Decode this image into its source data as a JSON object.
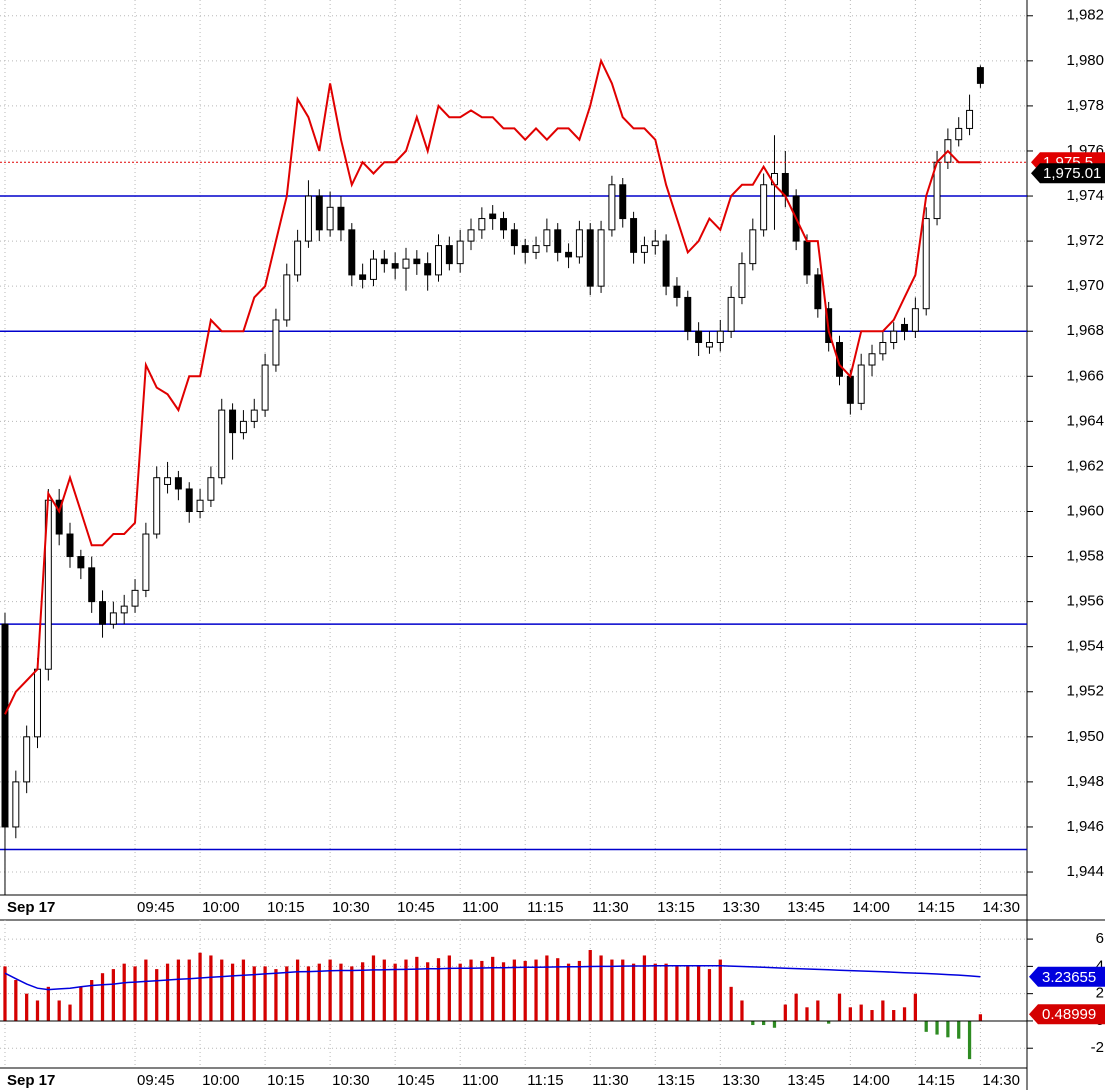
{
  "chart_data": [
    {
      "type": "candlestick",
      "xlim": [
        -0.46,
        94.3
      ],
      "xticks": [
        {
          "value": 0,
          "label": "Sep 17"
        },
        {
          "value": 12,
          "label": "09:45"
        },
        {
          "value": 18,
          "label": "10:00"
        },
        {
          "value": 24,
          "label": "10:15"
        },
        {
          "value": 30,
          "label": "10:30"
        },
        {
          "value": 36,
          "label": "10:45"
        },
        {
          "value": 42,
          "label": "11:00"
        },
        {
          "value": 48,
          "label": "11:15"
        },
        {
          "value": 54,
          "label": "11:30"
        },
        {
          "value": 60,
          "label": "13:15"
        },
        {
          "value": 66,
          "label": "13:30"
        },
        {
          "value": 72,
          "label": "13:45"
        },
        {
          "value": 78,
          "label": "14:00"
        },
        {
          "value": 84,
          "label": "14:15"
        },
        {
          "value": 90,
          "label": "14:30"
        }
      ],
      "ylim": [
        1942.98,
        1982.7
      ],
      "yticks": [
        {
          "value": 1944,
          "label": "1,944"
        },
        {
          "value": 1946,
          "label": "1,946"
        },
        {
          "value": 1948,
          "label": "1,948"
        },
        {
          "value": 1950,
          "label": "1,950"
        },
        {
          "value": 1952,
          "label": "1,952"
        },
        {
          "value": 1954,
          "label": "1,954"
        },
        {
          "value": 1956,
          "label": "1,956"
        },
        {
          "value": 1958,
          "label": "1,958"
        },
        {
          "value": 1960,
          "label": "1,960"
        },
        {
          "value": 1962,
          "label": "1,962"
        },
        {
          "value": 1964,
          "label": "1,964"
        },
        {
          "value": 1966,
          "label": "1,966"
        },
        {
          "value": 1968,
          "label": "1,968"
        },
        {
          "value": 1970,
          "label": "1,970"
        },
        {
          "value": 1972,
          "label": "1,972"
        },
        {
          "value": 1974,
          "label": "1,974"
        },
        {
          "value": 1976,
          "label": "1,976"
        },
        {
          "value": 1978,
          "label": "1,978"
        },
        {
          "value": 1980,
          "label": "1,980"
        },
        {
          "value": 1982,
          "label": "1,982"
        }
      ],
      "grid": true,
      "up_color": "#ffffff",
      "down_color": "#000000",
      "ohlc": [
        [
          1955,
          1955.5,
          1943,
          1946
        ],
        [
          1946,
          1948.5,
          1945.5,
          1948
        ],
        [
          1948,
          1950.5,
          1947.5,
          1950
        ],
        [
          1950,
          1953.5,
          1949.5,
          1953
        ],
        [
          1953,
          1961,
          1952.5,
          1960.5
        ],
        [
          1960.5,
          1961,
          1958.5,
          1959
        ],
        [
          1959,
          1959.5,
          1957.5,
          1958
        ],
        [
          1958,
          1958.3,
          1957,
          1957.5
        ],
        [
          1957.5,
          1958,
          1955.5,
          1956
        ],
        [
          1956,
          1956.5,
          1954.4,
          1955
        ],
        [
          1955,
          1956,
          1954.8,
          1955.5
        ],
        [
          1955.5,
          1956.3,
          1955,
          1955.8
        ],
        [
          1955.8,
          1957,
          1955.5,
          1956.5
        ],
        [
          1956.5,
          1959.5,
          1956.2,
          1959
        ],
        [
          1959,
          1962,
          1958.8,
          1961.5
        ],
        [
          1961.2,
          1962.2,
          1960.8,
          1961.5
        ],
        [
          1961.5,
          1961.8,
          1960.5,
          1961
        ],
        [
          1961,
          1961.3,
          1959.5,
          1960
        ],
        [
          1960,
          1961,
          1959.7,
          1960.5
        ],
        [
          1960.5,
          1962,
          1960.2,
          1961.5
        ],
        [
          1961.5,
          1965,
          1961.2,
          1964.5
        ],
        [
          1964.5,
          1964.8,
          1962.3,
          1963.5
        ],
        [
          1963.5,
          1964.5,
          1963.2,
          1964
        ],
        [
          1964,
          1965,
          1963.7,
          1964.5
        ],
        [
          1964.5,
          1967,
          1964.2,
          1966.5
        ],
        [
          1966.5,
          1969,
          1966.2,
          1968.5
        ],
        [
          1968.5,
          1971,
          1968.2,
          1970.5
        ],
        [
          1970.5,
          1972.5,
          1970.2,
          1972
        ],
        [
          1972,
          1974.7,
          1971.7,
          1974
        ],
        [
          1974,
          1974.3,
          1972,
          1972.5
        ],
        [
          1972.5,
          1974.2,
          1972.2,
          1973.5
        ],
        [
          1973.5,
          1974,
          1972,
          1972.5
        ],
        [
          1972.5,
          1972.8,
          1970,
          1970.5
        ],
        [
          1970.5,
          1971,
          1969.9,
          1970.3
        ],
        [
          1970.3,
          1971.6,
          1970,
          1971.2
        ],
        [
          1971.2,
          1971.6,
          1970.6,
          1971
        ],
        [
          1971,
          1971.5,
          1970.3,
          1970.8
        ],
        [
          1970.8,
          1971.7,
          1969.8,
          1971.2
        ],
        [
          1971.2,
          1971.6,
          1970.5,
          1971
        ],
        [
          1971,
          1971.5,
          1969.8,
          1970.5
        ],
        [
          1970.5,
          1972.3,
          1970.2,
          1971.8
        ],
        [
          1971.8,
          1972.2,
          1970.7,
          1971
        ],
        [
          1971,
          1972.5,
          1970.6,
          1972
        ],
        [
          1972,
          1973,
          1971.6,
          1972.5
        ],
        [
          1972.5,
          1973.5,
          1972.1,
          1973
        ],
        [
          1973.2,
          1973.6,
          1972.5,
          1973
        ],
        [
          1973,
          1973.3,
          1972.1,
          1972.5
        ],
        [
          1972.5,
          1972.8,
          1971.4,
          1971.8
        ],
        [
          1971.8,
          1972.1,
          1971,
          1971.5
        ],
        [
          1971.5,
          1972.2,
          1971.2,
          1971.8
        ],
        [
          1971.8,
          1973,
          1971.5,
          1972.5
        ],
        [
          1972.5,
          1972.8,
          1971.1,
          1971.5
        ],
        [
          1971.5,
          1971.9,
          1970.8,
          1971.3
        ],
        [
          1971.3,
          1972.9,
          1971,
          1972.5
        ],
        [
          1972.5,
          1972.8,
          1969.6,
          1970
        ],
        [
          1970,
          1972.9,
          1969.7,
          1972.5
        ],
        [
          1972.5,
          1974.9,
          1972.2,
          1974.5
        ],
        [
          1974.5,
          1974.8,
          1972.6,
          1973
        ],
        [
          1973,
          1973.3,
          1971,
          1971.5
        ],
        [
          1971.5,
          1972.2,
          1971,
          1971.8
        ],
        [
          1971.8,
          1972.5,
          1971.4,
          1972
        ],
        [
          1972,
          1972.3,
          1969.6,
          1970
        ],
        [
          1970,
          1970.4,
          1969.1,
          1969.5
        ],
        [
          1969.5,
          1969.8,
          1967.6,
          1968
        ],
        [
          1968,
          1968.4,
          1966.9,
          1967.5
        ],
        [
          1967.3,
          1968,
          1967,
          1967.5
        ],
        [
          1967.5,
          1968.5,
          1967.1,
          1968
        ],
        [
          1968,
          1970,
          1967.7,
          1969.5
        ],
        [
          1969.5,
          1971.5,
          1969.2,
          1971
        ],
        [
          1971,
          1973,
          1970.7,
          1972.5
        ],
        [
          1972.5,
          1975,
          1972.2,
          1974.5
        ],
        [
          1974.5,
          1976.7,
          1972.5,
          1975
        ],
        [
          1975,
          1976,
          1973.5,
          1974
        ],
        [
          1974,
          1974.3,
          1971.6,
          1972
        ],
        [
          1972,
          1972.3,
          1970.1,
          1970.5
        ],
        [
          1970.5,
          1970.8,
          1968.6,
          1969
        ],
        [
          1969,
          1969.3,
          1967.1,
          1967.5
        ],
        [
          1967.5,
          1967.8,
          1965.6,
          1966
        ],
        [
          1966,
          1966.3,
          1964.3,
          1964.8
        ],
        [
          1964.8,
          1967,
          1964.5,
          1966.5
        ],
        [
          1966.5,
          1967.4,
          1966,
          1967
        ],
        [
          1967,
          1968,
          1966.7,
          1967.5
        ],
        [
          1967.5,
          1968.4,
          1967.2,
          1968
        ],
        [
          1968.3,
          1968.6,
          1967.6,
          1968
        ],
        [
          1968,
          1969.5,
          1967.7,
          1969
        ],
        [
          1969,
          1973.5,
          1968.7,
          1973
        ],
        [
          1973,
          1976,
          1972.7,
          1975.5
        ],
        [
          1975.5,
          1977,
          1975.2,
          1976.5
        ],
        [
          1976.5,
          1977.5,
          1976.2,
          1977
        ],
        [
          1977,
          1978.5,
          1976.7,
          1977.8
        ],
        [
          1979.7,
          1979.8,
          1978.8,
          1979
        ]
      ],
      "line": {
        "color": "#e00000",
        "values": [
          1951,
          1952,
          1952.5,
          1953,
          1960.8,
          1960,
          1961.5,
          1960,
          1958.5,
          1958.5,
          1959,
          1959,
          1959.5,
          1966.5,
          1965.5,
          1965.2,
          1964.5,
          1966,
          1966,
          1968.5,
          1968,
          1968,
          1968,
          1969.5,
          1970,
          1972,
          1974,
          1978.3,
          1977.5,
          1976,
          1979,
          1976.5,
          1974.5,
          1975.5,
          1975,
          1975.5,
          1975.5,
          1976,
          1977.5,
          1976,
          1978,
          1977.5,
          1977.5,
          1977.8,
          1977.5,
          1977.5,
          1977,
          1977,
          1976.5,
          1977,
          1976.5,
          1977,
          1977,
          1976.5,
          1978,
          1980,
          1979,
          1977.5,
          1977,
          1977,
          1976.5,
          1974.5,
          1973,
          1971.5,
          1972,
          1973,
          1972.5,
          1974,
          1974.5,
          1974.5,
          1975.3,
          1974.5,
          1974,
          1973,
          1972,
          1972,
          1968,
          1966.5,
          1966,
          1968,
          1968,
          1968,
          1968.5,
          1969.5,
          1970.5,
          1974,
          1975.5,
          1976,
          1975.5,
          1975.5,
          1975.5
        ]
      },
      "hlines": {
        "color": "#0000cc",
        "values": [
          1974,
          1968,
          1955,
          1945
        ]
      },
      "price_tags": [
        {
          "value": 1975.5,
          "label": "1,975.5",
          "color": "#e00000"
        },
        {
          "value": 1975.01,
          "label": "1,975.01",
          "color": "#000000"
        }
      ]
    },
    {
      "type": "bar",
      "xlim": [
        -0.46,
        94.3
      ],
      "xticks": [
        {
          "value": 0,
          "label": "Sep 17"
        },
        {
          "value": 12,
          "label": "09:45"
        },
        {
          "value": 18,
          "label": "10:00"
        },
        {
          "value": 24,
          "label": "10:15"
        },
        {
          "value": 30,
          "label": "10:30"
        },
        {
          "value": 36,
          "label": "10:45"
        },
        {
          "value": 42,
          "label": "11:00"
        },
        {
          "value": 48,
          "label": "11:15"
        },
        {
          "value": 54,
          "label": "11:30"
        },
        {
          "value": 60,
          "label": "13:15"
        },
        {
          "value": 66,
          "label": "13:30"
        },
        {
          "value": 72,
          "label": "13:45"
        },
        {
          "value": 78,
          "label": "14:00"
        },
        {
          "value": 84,
          "label": "14:15"
        },
        {
          "value": 90,
          "label": "14:30"
        }
      ],
      "ylim": [
        -3.45,
        7.4
      ],
      "yticks": [
        -2,
        0,
        2,
        4,
        6
      ],
      "grid": true,
      "positive_color": "#d40000",
      "negative_color": "#2e8b22",
      "values": [
        4,
        3,
        2,
        1.5,
        2.5,
        1.5,
        1.2,
        2.5,
        3,
        3.5,
        3.8,
        4.2,
        4,
        4.5,
        3.8,
        4.2,
        4.5,
        4.5,
        5,
        4.8,
        4.5,
        4.2,
        4.5,
        4,
        4,
        3.8,
        4,
        4.5,
        4,
        4.2,
        4.5,
        4.2,
        4,
        4.3,
        4.8,
        4.5,
        4.2,
        4.5,
        4.7,
        4.3,
        4.6,
        4.8,
        4.2,
        4.5,
        4.4,
        4.7,
        4.3,
        4.5,
        4.4,
        4.5,
        4.8,
        4.6,
        4.2,
        4.4,
        5.2,
        4.8,
        4.5,
        4.5,
        4.2,
        4.8,
        4.2,
        4.2,
        4,
        4,
        4,
        3.8,
        4.5,
        2.5,
        1.5,
        -0.3,
        -0.3,
        -0.5,
        1.2,
        2,
        1,
        1.5,
        -0.2,
        2,
        1,
        1.2,
        0.8,
        1.5,
        0.8,
        1,
        2,
        -0.8,
        -1,
        -1.2,
        -1.3,
        -2.8,
        0.48999
      ],
      "line": {
        "color": "#0000dd",
        "values": [
          3.5,
          3.1,
          2.7,
          2.4,
          2.3,
          2.35,
          2.4,
          2.5,
          2.6,
          2.65,
          2.7,
          2.8,
          2.85,
          2.9,
          2.95,
          3.0,
          3.05,
          3.1,
          3.15,
          3.2,
          3.25,
          3.3,
          3.35,
          3.4,
          3.45,
          3.5,
          3.55,
          3.6,
          3.62,
          3.65,
          3.68,
          3.7,
          3.7,
          3.72,
          3.74,
          3.75,
          3.77,
          3.78,
          3.8,
          3.82,
          3.83,
          3.85,
          3.86,
          3.87,
          3.88,
          3.9,
          3.9,
          3.92,
          3.93,
          3.94,
          3.95,
          3.96,
          3.97,
          3.98,
          3.99,
          4.0,
          4.0,
          4.02,
          4.03,
          4.03,
          4.04,
          4.04,
          4.05,
          4.05,
          4.05,
          4.05,
          4.05,
          4.02,
          3.99,
          3.96,
          3.93,
          3.9,
          3.87,
          3.84,
          3.81,
          3.78,
          3.75,
          3.72,
          3.69,
          3.66,
          3.63,
          3.6,
          3.57,
          3.54,
          3.51,
          3.48,
          3.44,
          3.4,
          3.36,
          3.3,
          3.23655
        ]
      }
    }
  ]
}
